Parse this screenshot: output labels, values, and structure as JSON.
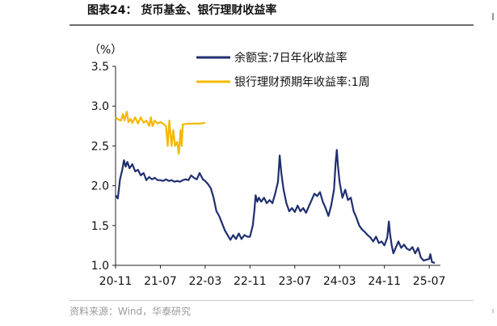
{
  "figure": {
    "title": "图表24：  货币基金、银行理财收益率",
    "source": "资料来源：Wind，华泰研究"
  },
  "colors": {
    "series_yuebao": "#1f2f6f",
    "series_wealth": "#f4b800",
    "axis": "#222222",
    "rule": "#6d6d6d"
  },
  "chart_data": {
    "type": "line",
    "title": "货币基金、银行理财收益率",
    "ylabel": "（%）",
    "xlabel": "",
    "ylim": [
      1.0,
      3.5
    ],
    "yticks": [
      1.0,
      1.5,
      2.0,
      2.5,
      3.0,
      3.5
    ],
    "ytick_labels": [
      "1.0",
      "1.5",
      "2.0",
      "2.5",
      "3.0",
      "3.5"
    ],
    "xlim": [
      0,
      58
    ],
    "xticks": [
      0,
      8,
      16,
      24,
      32,
      40,
      48,
      56
    ],
    "xtick_labels": [
      "20-11",
      "21-07",
      "22-03",
      "22-11",
      "23-07",
      "24-03",
      "24-11",
      "25-07"
    ],
    "x_unit": "months since 2020-11",
    "grid": false,
    "legend_position": "top-right",
    "series": [
      {
        "name": "余额宝:7日年化收益率",
        "color": "#1f2f6f",
        "points": [
          [
            0.0,
            1.88
          ],
          [
            0.4,
            1.84
          ],
          [
            0.8,
            2.08
          ],
          [
            1.2,
            2.2
          ],
          [
            1.5,
            2.32
          ],
          [
            1.8,
            2.24
          ],
          [
            2.1,
            2.3
          ],
          [
            2.5,
            2.22
          ],
          [
            3.0,
            2.27
          ],
          [
            3.5,
            2.18
          ],
          [
            4.0,
            2.2
          ],
          [
            4.5,
            2.13
          ],
          [
            5.0,
            2.16
          ],
          [
            5.5,
            2.07
          ],
          [
            6.0,
            2.11
          ],
          [
            6.5,
            2.08
          ],
          [
            7.0,
            2.1
          ],
          [
            7.5,
            2.07
          ],
          [
            8.0,
            2.07
          ],
          [
            8.5,
            2.06
          ],
          [
            9.0,
            2.08
          ],
          [
            9.5,
            2.06
          ],
          [
            10.0,
            2.07
          ],
          [
            10.5,
            2.05
          ],
          [
            11.0,
            2.06
          ],
          [
            11.5,
            2.05
          ],
          [
            12.0,
            2.07
          ],
          [
            12.5,
            2.08
          ],
          [
            13.0,
            2.07
          ],
          [
            13.5,
            2.13
          ],
          [
            14.0,
            2.1
          ],
          [
            14.5,
            2.08
          ],
          [
            15.0,
            2.16
          ],
          [
            15.3,
            2.12
          ],
          [
            15.6,
            2.08
          ],
          [
            16.0,
            2.06
          ],
          [
            16.5,
            2.02
          ],
          [
            17.0,
            1.97
          ],
          [
            17.5,
            1.85
          ],
          [
            18.0,
            1.68
          ],
          [
            18.5,
            1.62
          ],
          [
            19.0,
            1.53
          ],
          [
            19.5,
            1.44
          ],
          [
            20.0,
            1.38
          ],
          [
            20.5,
            1.32
          ],
          [
            21.0,
            1.38
          ],
          [
            21.5,
            1.33
          ],
          [
            22.0,
            1.4
          ],
          [
            22.5,
            1.33
          ],
          [
            23.0,
            1.38
          ],
          [
            23.5,
            1.36
          ],
          [
            24.0,
            1.36
          ],
          [
            24.5,
            1.5
          ],
          [
            24.8,
            1.7
          ],
          [
            25.0,
            1.88
          ],
          [
            25.3,
            1.8
          ],
          [
            25.6,
            1.85
          ],
          [
            26.0,
            1.8
          ],
          [
            26.5,
            1.85
          ],
          [
            27.0,
            1.78
          ],
          [
            27.5,
            1.82
          ],
          [
            28.0,
            1.78
          ],
          [
            28.5,
            1.9
          ],
          [
            29.0,
            2.05
          ],
          [
            29.3,
            2.38
          ],
          [
            29.6,
            2.15
          ],
          [
            30.0,
            1.95
          ],
          [
            30.5,
            1.78
          ],
          [
            31.0,
            1.68
          ],
          [
            31.5,
            1.72
          ],
          [
            32.0,
            1.67
          ],
          [
            32.5,
            1.75
          ],
          [
            33.0,
            1.68
          ],
          [
            33.5,
            1.72
          ],
          [
            34.0,
            1.66
          ],
          [
            34.5,
            1.74
          ],
          [
            35.0,
            1.82
          ],
          [
            35.5,
            1.9
          ],
          [
            36.0,
            1.87
          ],
          [
            36.5,
            1.92
          ],
          [
            37.0,
            1.8
          ],
          [
            37.5,
            1.72
          ],
          [
            38.0,
            1.62
          ],
          [
            38.5,
            1.75
          ],
          [
            39.0,
            1.95
          ],
          [
            39.3,
            2.3
          ],
          [
            39.5,
            2.45
          ],
          [
            39.7,
            2.25
          ],
          [
            40.0,
            2.05
          ],
          [
            40.5,
            1.85
          ],
          [
            41.0,
            1.95
          ],
          [
            41.5,
            1.82
          ],
          [
            42.0,
            1.85
          ],
          [
            42.5,
            1.68
          ],
          [
            43.0,
            1.6
          ],
          [
            43.5,
            1.5
          ],
          [
            44.0,
            1.45
          ],
          [
            44.5,
            1.42
          ],
          [
            45.0,
            1.38
          ],
          [
            45.5,
            1.35
          ],
          [
            46.0,
            1.3
          ],
          [
            46.5,
            1.36
          ],
          [
            47.0,
            1.28
          ],
          [
            47.5,
            1.3
          ],
          [
            48.0,
            1.25
          ],
          [
            48.5,
            1.35
          ],
          [
            48.8,
            1.55
          ],
          [
            49.0,
            1.4
          ],
          [
            49.3,
            1.25
          ],
          [
            49.6,
            1.15
          ],
          [
            50.0,
            1.22
          ],
          [
            50.5,
            1.3
          ],
          [
            51.0,
            1.22
          ],
          [
            51.5,
            1.26
          ],
          [
            52.0,
            1.21
          ],
          [
            52.5,
            1.19
          ],
          [
            53.0,
            1.23
          ],
          [
            53.5,
            1.15
          ],
          [
            54.0,
            1.22
          ],
          [
            54.5,
            1.1
          ],
          [
            55.0,
            1.06
          ],
          [
            55.5,
            1.07
          ],
          [
            56.0,
            1.08
          ],
          [
            56.2,
            1.14
          ],
          [
            56.5,
            1.04
          ],
          [
            57.0,
            1.03
          ]
        ]
      },
      {
        "name": "银行理财预期年收益率:1周",
        "color": "#f4b800",
        "points": [
          [
            0.0,
            2.86
          ],
          [
            0.5,
            2.83
          ],
          [
            1.0,
            2.82
          ],
          [
            1.3,
            2.9
          ],
          [
            1.6,
            2.82
          ],
          [
            2.0,
            2.93
          ],
          [
            2.3,
            2.8
          ],
          [
            2.7,
            2.84
          ],
          [
            3.0,
            2.79
          ],
          [
            3.5,
            2.86
          ],
          [
            4.0,
            2.78
          ],
          [
            4.5,
            2.86
          ],
          [
            5.0,
            2.79
          ],
          [
            5.5,
            2.82
          ],
          [
            6.0,
            2.75
          ],
          [
            6.3,
            2.86
          ],
          [
            6.6,
            2.75
          ],
          [
            7.0,
            2.82
          ],
          [
            7.5,
            2.78
          ],
          [
            8.0,
            2.8
          ],
          [
            8.5,
            2.78
          ],
          [
            9.0,
            2.75
          ],
          [
            9.3,
            2.5
          ],
          [
            9.6,
            2.82
          ],
          [
            10.0,
            2.5
          ],
          [
            10.3,
            2.7
          ],
          [
            10.6,
            2.5
          ],
          [
            11.0,
            2.55
          ],
          [
            11.3,
            2.4
          ],
          [
            11.6,
            2.7
          ],
          [
            11.8,
            2.5
          ],
          [
            12.0,
            2.77
          ],
          [
            13.0,
            2.78
          ],
          [
            14.0,
            2.78
          ],
          [
            15.0,
            2.78
          ],
          [
            16.0,
            2.79
          ]
        ]
      }
    ]
  }
}
